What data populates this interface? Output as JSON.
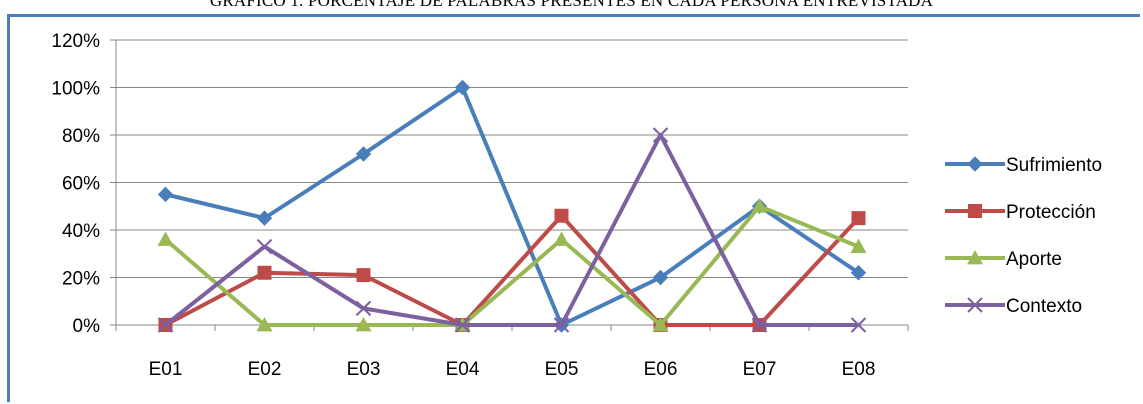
{
  "chart_data": {
    "type": "line",
    "title": "GRÁFICO 1. PORCENTAJE DE PALABRAS PRESENTES EN CADA PERSONA ENTREVISTADA",
    "categories": [
      "E01",
      "E02",
      "E03",
      "E04",
      "E05",
      "E06",
      "E07",
      "E08"
    ],
    "ylim": [
      0,
      120
    ],
    "yticks": [
      "0%",
      "20%",
      "40%",
      "60%",
      "80%",
      "100%",
      "120%"
    ],
    "grid": true,
    "legend_position": "right",
    "series": [
      {
        "name": "Sufrimiento",
        "color": "#4a7ebb",
        "marker": "diamond",
        "values": [
          55,
          45,
          72,
          100,
          0,
          20,
          50,
          22
        ]
      },
      {
        "name": "Protección",
        "color": "#be4b48",
        "marker": "square",
        "values": [
          0,
          22,
          21,
          0,
          46,
          0,
          0,
          45
        ]
      },
      {
        "name": "Aporte",
        "color": "#98b954",
        "marker": "triangle",
        "values": [
          36,
          0,
          0,
          0,
          36,
          0,
          50,
          33
        ]
      },
      {
        "name": "Contexto",
        "color": "#7d60a0",
        "marker": "x",
        "values": [
          0,
          33,
          7,
          0,
          0,
          80,
          0,
          0
        ]
      }
    ]
  }
}
